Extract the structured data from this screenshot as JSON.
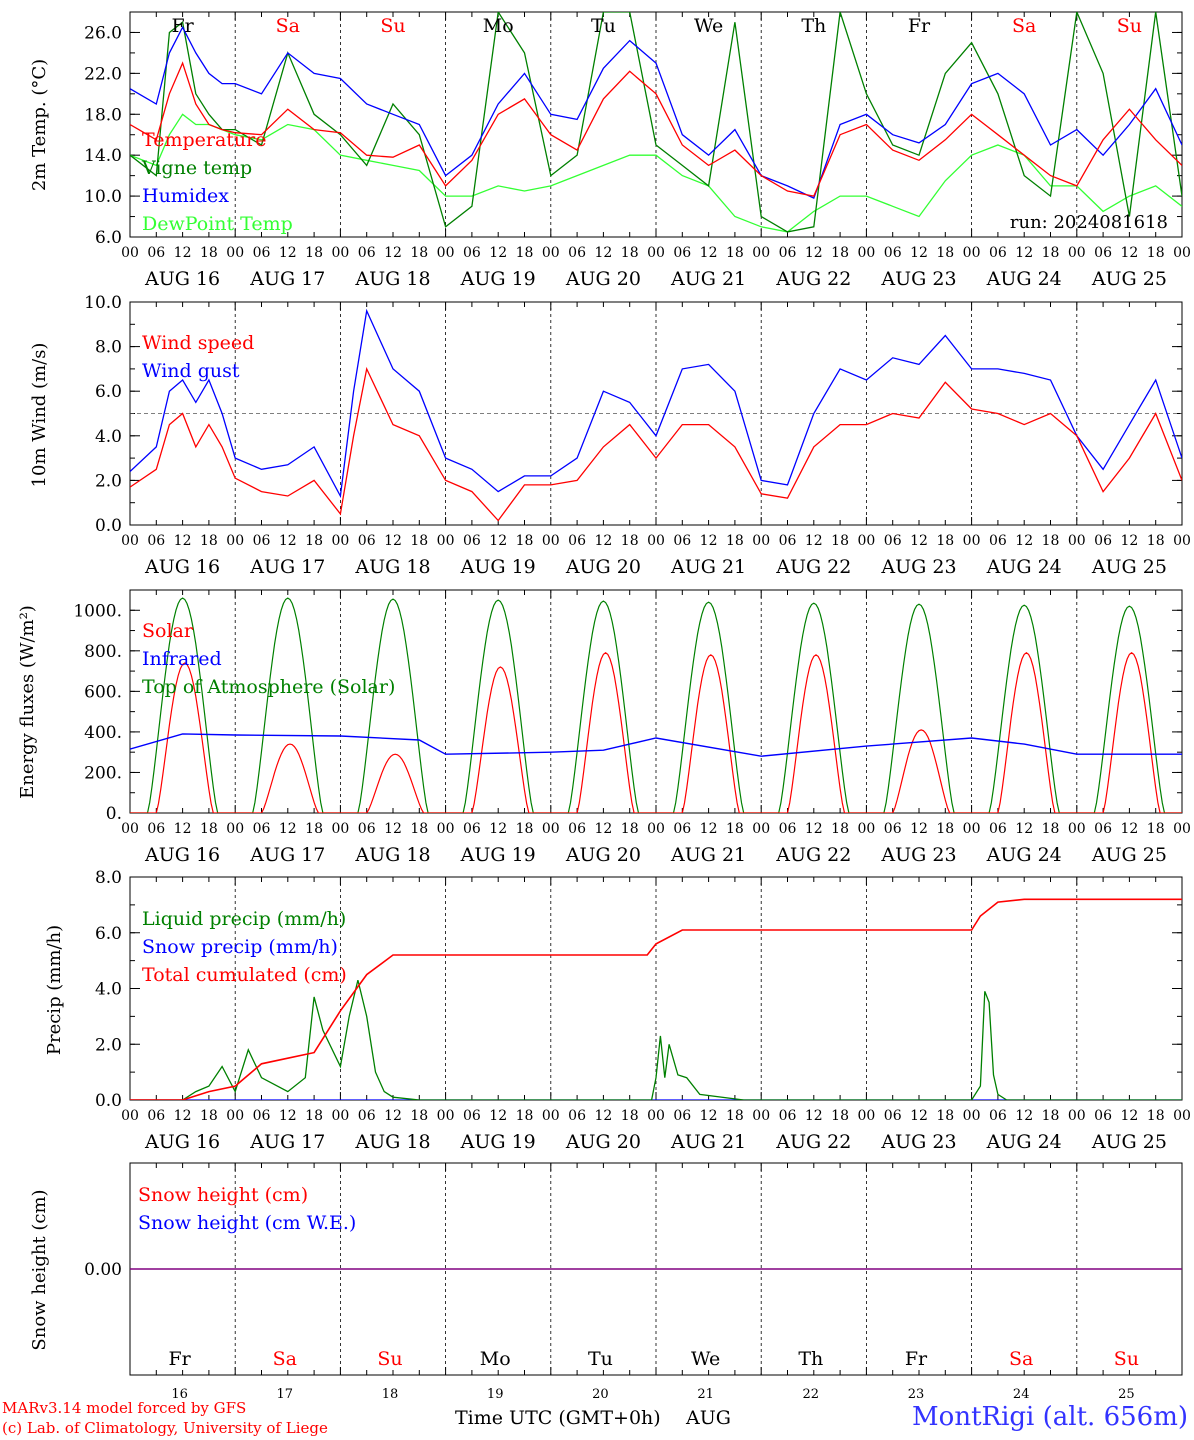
{
  "run_label": "run: 2024081618",
  "credits": [
    "MARv3.14 model forced by GFS",
    "(c) Lab. of Climatology, University of Liege"
  ],
  "station": "MontRigi (alt. 656m)",
  "time_axis_label": "Time UTC (GMT+0h)",
  "month_label": "AUG",
  "hour_ticks": [
    "00",
    "06",
    "12",
    "18"
  ],
  "date_labels": [
    "AUG 16",
    "AUG 17",
    "AUG 18",
    "AUG 19",
    "AUG 20",
    "AUG 21",
    "AUG 22",
    "AUG 23",
    "AUG 24",
    "AUG 25"
  ],
  "day_numbers": [
    "16",
    "17",
    "18",
    "19",
    "20",
    "21",
    "22",
    "23",
    "24",
    "25"
  ],
  "weekdays": [
    "Fr",
    "Sa",
    "Su",
    "Mo",
    "Tu",
    "We",
    "Th",
    "Fr",
    "Sa",
    "Su"
  ],
  "weekend_color": "#ff0000",
  "weekday_color": "#000000",
  "chart_data": [
    {
      "type": "line",
      "ylabel": "2m Temp. (°C)",
      "ylim": [
        6,
        28
      ],
      "yticks": [
        "6.0",
        "10.0",
        "14.0",
        "18.0",
        "22.0",
        "26.0"
      ],
      "grid": false,
      "legend_placement": "top-left",
      "x_unit": "hours since 2024-08-16 00 UTC",
      "series": [
        {
          "name": "Temperature",
          "color": "#ff0000",
          "x": [
            0,
            6,
            9,
            12,
            15,
            18,
            21,
            24,
            30,
            36,
            42,
            48,
            54,
            60,
            66,
            72,
            78,
            84,
            90,
            96,
            102,
            108,
            114,
            120,
            126,
            132,
            138,
            144,
            150,
            156,
            162,
            168,
            174,
            180,
            186,
            192,
            198,
            204,
            210,
            216,
            222,
            228,
            234,
            240
          ],
          "values": [
            17,
            15.5,
            20,
            23,
            19,
            17,
            16.5,
            16.2,
            16,
            18.5,
            16.5,
            16.2,
            14,
            13.8,
            15,
            11,
            13.5,
            18,
            19.5,
            16,
            14.5,
            19.5,
            22.2,
            20,
            15,
            13,
            14.5,
            12,
            10.5,
            10,
            16,
            17,
            14.5,
            13.5,
            15.5,
            18,
            16,
            14,
            12,
            11,
            15.5,
            18.5,
            15.5,
            13
          ]
        },
        {
          "name": "Vigne temp",
          "color": "#008000",
          "x": [
            0,
            6,
            9,
            12,
            15,
            18,
            21,
            24,
            30,
            36,
            42,
            48,
            54,
            60,
            66,
            72,
            78,
            84,
            90,
            96,
            102,
            108,
            114,
            120,
            126,
            132,
            138,
            144,
            150,
            156,
            162,
            168,
            174,
            180,
            186,
            192,
            198,
            204,
            210,
            216,
            222,
            228,
            234,
            240
          ],
          "values": [
            14,
            12,
            26,
            27,
            20,
            18,
            16.5,
            16.5,
            15,
            24,
            18,
            16,
            13,
            19,
            16,
            7,
            9,
            28,
            24,
            12,
            14,
            28,
            28,
            15,
            13,
            11,
            27,
            8,
            6.5,
            7,
            28,
            20,
            15,
            14,
            22,
            25,
            20,
            12,
            10,
            28,
            22,
            8,
            28,
            10
          ]
        },
        {
          "name": "Humidex",
          "color": "#0000ff",
          "x": [
            0,
            6,
            9,
            12,
            15,
            18,
            21,
            24,
            30,
            36,
            42,
            48,
            54,
            60,
            66,
            72,
            78,
            84,
            90,
            96,
            102,
            108,
            114,
            120,
            126,
            132,
            138,
            144,
            150,
            156,
            162,
            168,
            174,
            180,
            186,
            192,
            198,
            204,
            210,
            216,
            222,
            228,
            234,
            240
          ],
          "values": [
            20.5,
            19,
            24,
            26.5,
            24,
            22,
            21,
            21,
            20,
            24,
            22,
            21.5,
            19,
            18,
            17,
            12,
            14,
            19,
            22,
            18,
            17.5,
            22.5,
            25.2,
            23,
            16,
            14,
            16.5,
            12,
            11,
            9.8,
            17,
            18,
            16,
            15.2,
            17,
            21,
            22,
            20,
            15,
            16.5,
            14,
            17,
            20.5,
            15
          ]
        },
        {
          "name": "DewPoint Temp",
          "color": "#33ff33",
          "x": [
            0,
            6,
            9,
            12,
            15,
            18,
            21,
            24,
            30,
            36,
            42,
            48,
            54,
            60,
            66,
            72,
            78,
            84,
            90,
            96,
            102,
            108,
            114,
            120,
            126,
            132,
            138,
            144,
            150,
            156,
            162,
            168,
            174,
            180,
            186,
            192,
            198,
            204,
            210,
            216,
            222,
            228,
            234,
            240
          ],
          "values": [
            14,
            13,
            16,
            18,
            17,
            17,
            16.5,
            16,
            15.5,
            17,
            16.5,
            14,
            13.5,
            13,
            12.5,
            10,
            10,
            11,
            10.5,
            11,
            12,
            13,
            14,
            14,
            12,
            11,
            8,
            7,
            6.5,
            8.5,
            10,
            10,
            9,
            8,
            11.5,
            14,
            15,
            14,
            11,
            11,
            8.5,
            10,
            11,
            9
          ]
        }
      ]
    },
    {
      "type": "line",
      "ylabel": "10m Wind (m/s)",
      "ylim": [
        0,
        10
      ],
      "yticks": [
        "0.0",
        "2.0",
        "4.0",
        "6.0",
        "8.0",
        "10.0"
      ],
      "reference_line": 5,
      "legend_placement": "top-left",
      "x_unit": "hours since 2024-08-16 00 UTC",
      "series": [
        {
          "name": "Wind speed",
          "color": "#ff0000",
          "x": [
            0,
            6,
            9,
            12,
            15,
            18,
            21,
            24,
            30,
            36,
            42,
            48,
            51,
            54,
            60,
            66,
            72,
            78,
            84,
            90,
            96,
            102,
            108,
            114,
            120,
            126,
            132,
            138,
            144,
            150,
            156,
            162,
            168,
            174,
            180,
            186,
            192,
            198,
            204,
            210,
            216,
            222,
            228,
            234,
            240
          ],
          "values": [
            1.7,
            2.5,
            4.5,
            5,
            3.5,
            4.5,
            3.5,
            2.1,
            1.5,
            1.3,
            2,
            0.5,
            4,
            7,
            4.5,
            4,
            2,
            1.5,
            0.2,
            1.8,
            1.8,
            2,
            3.5,
            4.5,
            3,
            4.5,
            4.5,
            3.5,
            1.4,
            1.2,
            3.5,
            4.5,
            4.5,
            5,
            4.8,
            6.4,
            5.2,
            5,
            4.5,
            5,
            4,
            1.5,
            3,
            5,
            2
          ]
        },
        {
          "name": "Wind gust",
          "color": "#0000ff",
          "x": [
            0,
            6,
            9,
            12,
            15,
            18,
            21,
            24,
            30,
            36,
            42,
            48,
            51,
            54,
            60,
            66,
            72,
            78,
            84,
            90,
            96,
            102,
            108,
            114,
            120,
            126,
            132,
            138,
            144,
            150,
            156,
            162,
            168,
            174,
            180,
            186,
            192,
            198,
            204,
            210,
            216,
            222,
            228,
            234,
            240
          ],
          "values": [
            2.4,
            3.5,
            6,
            6.5,
            5.5,
            6.5,
            5,
            3,
            2.5,
            2.7,
            3.5,
            1.3,
            6,
            9.6,
            7,
            6,
            3,
            2.5,
            1.5,
            2.2,
            2.2,
            3,
            6,
            5.5,
            4,
            7,
            7.2,
            6,
            2,
            1.8,
            5,
            7,
            6.5,
            7.5,
            7.2,
            8.5,
            7,
            7,
            6.8,
            6.5,
            4,
            2.5,
            4.5,
            6.5,
            3
          ]
        }
      ]
    },
    {
      "type": "line",
      "ylabel": "Energy fluxes (W/m²)",
      "ylim": [
        0,
        1100
      ],
      "yticks": [
        "0.",
        "200.",
        "400.",
        "600.",
        "800.",
        "1000."
      ],
      "legend_placement": "top-left",
      "x_unit": "hours since 2024-08-16 00 UTC",
      "peaks_solar": [
        740,
        340,
        290,
        720,
        790,
        780,
        780,
        410,
        790,
        790
      ],
      "peaks_toa": [
        1060,
        1060,
        1055,
        1050,
        1045,
        1040,
        1035,
        1030,
        1025,
        1020
      ],
      "series": [
        {
          "name": "Solar",
          "color": "#ff0000"
        },
        {
          "name": "Infrared",
          "color": "#0000ff",
          "x": [
            0,
            12,
            24,
            48,
            66,
            72,
            96,
            108,
            114,
            120,
            144,
            168,
            192,
            204,
            216,
            240
          ],
          "values": [
            315,
            390,
            385,
            380,
            360,
            290,
            300,
            310,
            340,
            370,
            280,
            330,
            370,
            340,
            290,
            290
          ]
        },
        {
          "name": "Top of Atmosphere (Solar)",
          "color": "#008000"
        }
      ]
    },
    {
      "type": "line",
      "ylabel": "Precip (mm/h)",
      "ylim": [
        0,
        8
      ],
      "yticks": [
        "0.0",
        "2.0",
        "4.0",
        "6.0",
        "8.0"
      ],
      "legend_placement": "top-left",
      "x_unit": "hours since 2024-08-16 00 UTC",
      "series": [
        {
          "name": "Liquid precip (mm/h)",
          "color": "#008000",
          "x": [
            0,
            12,
            15,
            18,
            21,
            24,
            27,
            30,
            36,
            40,
            42,
            44,
            48,
            50,
            52,
            54,
            56,
            58,
            60,
            66,
            96,
            119,
            120,
            121,
            122,
            123,
            125,
            127,
            130,
            140,
            192,
            194,
            195,
            196,
            197,
            198,
            200,
            240
          ],
          "values": [
            0,
            0,
            0.3,
            0.5,
            1.2,
            0.3,
            1.8,
            0.8,
            0.3,
            0.8,
            3.7,
            2.5,
            1.2,
            3,
            4.3,
            3,
            1,
            0.3,
            0.1,
            0,
            0,
            0,
            0.8,
            2.3,
            0.8,
            2,
            0.9,
            0.8,
            0.2,
            0,
            0,
            0.5,
            3.9,
            3.5,
            0.9,
            0.2,
            0,
            0
          ]
        },
        {
          "name": "Snow precip (mm/h)",
          "color": "#0000ff",
          "x": [
            0,
            240
          ],
          "values": [
            0,
            0
          ]
        },
        {
          "name": "Total cumulated (cm)",
          "color": "#ff0000",
          "x": [
            0,
            12,
            18,
            24,
            30,
            36,
            42,
            48,
            54,
            60,
            96,
            118,
            120,
            126,
            132,
            192,
            194,
            198,
            204,
            240
          ],
          "values": [
            0,
            0,
            0.3,
            0.5,
            1.3,
            1.5,
            1.7,
            3.2,
            4.5,
            5.2,
            5.2,
            5.2,
            5.6,
            6.1,
            6.1,
            6.1,
            6.6,
            7.1,
            7.2,
            7.2
          ]
        }
      ]
    },
    {
      "type": "line",
      "ylabel": "Snow height (cm)",
      "yticks": [
        "0.00"
      ],
      "legend_placement": "top-left",
      "series": [
        {
          "name": "Snow height (cm)",
          "color": "#ff0000",
          "x": [
            0,
            240
          ],
          "values": [
            0,
            0
          ]
        },
        {
          "name": "Snow height (cm W.E.)",
          "color": "#0000ff",
          "x": [
            0,
            240
          ],
          "values": [
            0,
            0
          ]
        }
      ]
    }
  ]
}
